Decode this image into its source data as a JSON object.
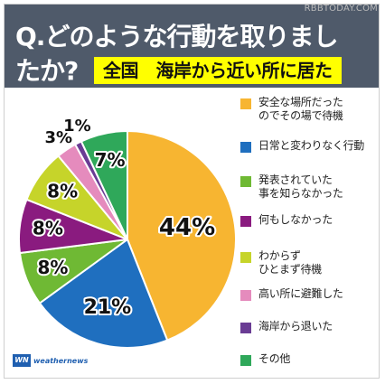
{
  "watermark": "RBBTODAY.COM",
  "header": {
    "question_line1": "Q.どのような行動を取りまし",
    "question_line2": "たか?",
    "badge": "全国　海岸から近い所に居た",
    "background": "#4f5a6a",
    "badge_color": "#ffff00"
  },
  "logo": {
    "mark": "WN",
    "text": "weathernews"
  },
  "chart_data": {
    "type": "pie",
    "slices": [
      {
        "label": "安全な場所だったのでその場で待機",
        "value": 44,
        "color": "#f7b531",
        "display": "44%"
      },
      {
        "label": "日常と変わりなく行動",
        "value": 21,
        "color": "#1f6fbf",
        "display": "21%"
      },
      {
        "label": "発表されていた事を知らなかった",
        "value": 8,
        "color": "#6fb934",
        "display": "8%"
      },
      {
        "label": "何もしなかった",
        "value": 8,
        "color": "#8a1b7f",
        "display": "8%"
      },
      {
        "label": "わからずひとまず待機",
        "value": 8,
        "color": "#c6d42a",
        "display": "8%"
      },
      {
        "label": "高い所に避難した",
        "value": 3,
        "color": "#e58bbd",
        "display": "3%"
      },
      {
        "label": "海岸から退いた",
        "value": 1,
        "color": "#6a3c94",
        "display": "1%"
      },
      {
        "label": "その他",
        "value": 7,
        "color": "#2fa85a",
        "display": "7%"
      }
    ],
    "legend": [
      {
        "text": "安全な場所だった\nのでその場で待機"
      },
      {
        "text": "日常と変わりなく行動"
      },
      {
        "text": "発表されていた\n事を知らなかった"
      },
      {
        "text": "何もしなかった"
      },
      {
        "text": "わからず\nひとまず待機"
      },
      {
        "text": "高い所に避難した"
      },
      {
        "text": "海岸から退いた"
      },
      {
        "text": "その他"
      }
    ],
    "legend_placement": "right"
  }
}
